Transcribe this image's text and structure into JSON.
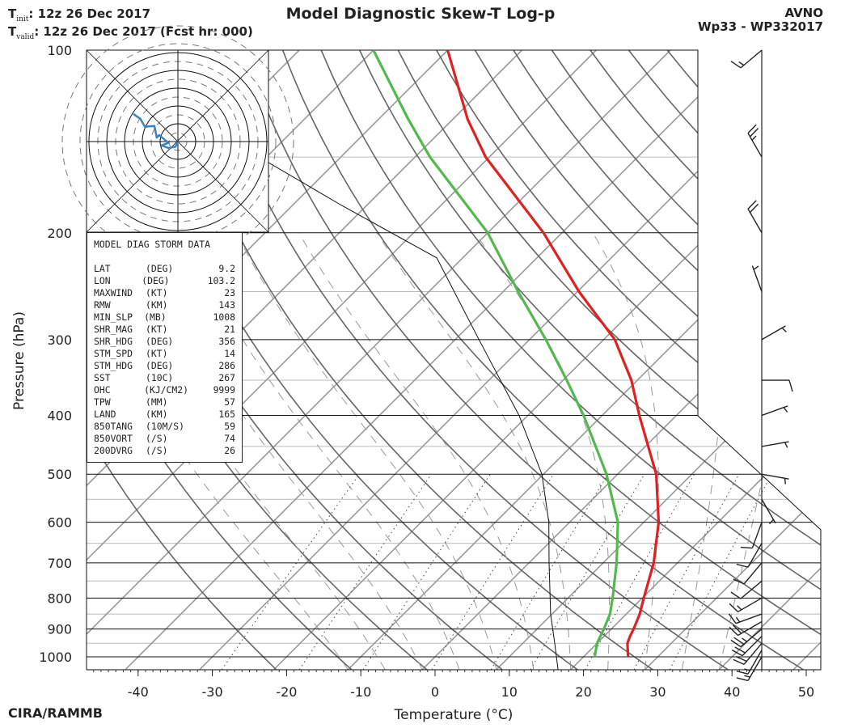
{
  "header": {
    "tinit_label": "init",
    "tinit_value": ":  12z 26 Dec 2017",
    "tvalid_label": "valid",
    "tvalid_value": ": 12z 26 Dec 2017 (Fcst hr: 000)",
    "title": "Model Diagnostic Skew-T Log-p",
    "model": "AVNO",
    "storm_id": "Wp33 - WP332017",
    "credit": "CIRA/RAMMB"
  },
  "storm_data": {
    "title": "MODEL DIAG STORM DATA",
    "rows": [
      {
        "key": "LAT",
        "unit": "(DEG)",
        "value": "9.2"
      },
      {
        "key": "LON",
        "unit": "(DEG)",
        "value": "103.2"
      },
      {
        "key": "MAXWIND",
        "unit": "(KT)",
        "value": "23"
      },
      {
        "key": "RMW",
        "unit": "(KM)",
        "value": "143"
      },
      {
        "key": "MIN_SLP",
        "unit": "(MB)",
        "value": "1008"
      },
      {
        "key": "SHR_MAG",
        "unit": "(KT)",
        "value": "21"
      },
      {
        "key": "SHR_HDG",
        "unit": "(DEG)",
        "value": "356"
      },
      {
        "key": "STM_SPD",
        "unit": "(KT)",
        "value": "14"
      },
      {
        "key": "STM_HDG",
        "unit": "(DEG)",
        "value": "286"
      },
      {
        "key": "SST",
        "unit": "(10C)",
        "value": "267"
      },
      {
        "key": "OHC",
        "unit": "(KJ/CM2)",
        "value": "9999"
      },
      {
        "key": "TPW",
        "unit": "(MM)",
        "value": "57"
      },
      {
        "key": "LAND",
        "unit": "(KM)",
        "value": "165"
      },
      {
        "key": "850TANG",
        "unit": "(10M/S)",
        "value": "59"
      },
      {
        "key": "850VORT",
        "unit": "(/S)",
        "value": "74"
      },
      {
        "key": "200DVRG",
        "unit": "(/S)",
        "value": "26"
      }
    ]
  },
  "chart_data": {
    "type": "line",
    "title": "Model Diagnostic Skew-T Log-p",
    "xlabel": "Temperature (°C)",
    "ylabel": "Pressure (hPa)",
    "x_ticks": [
      -40,
      -30,
      -20,
      -10,
      0,
      10,
      20,
      30,
      40,
      50
    ],
    "y_ticks": [
      100,
      200,
      300,
      400,
      500,
      600,
      700,
      800,
      900,
      1000
    ],
    "xlim": [
      -47,
      52
    ],
    "ylim": [
      1050,
      100
    ],
    "y_scale": "log",
    "series": [
      {
        "color": "#dd2222",
        "pressure": [
          1000,
          950,
          925,
          900,
          850,
          800,
          700,
          600,
          500,
          400,
          350,
          300,
          250,
          200,
          150,
          130,
          100
        ],
        "temperature": [
          26.0,
          24.1,
          23.5,
          23.0,
          21.8,
          20.2,
          16.8,
          12.0,
          5.2,
          -5.0,
          -10.8,
          -18.5,
          -29.8,
          -42.5,
          -60.5,
          -68.0,
          -80.0
        ]
      },
      {
        "color": "#55b84f",
        "pressure": [
          1000,
          950,
          925,
          900,
          850,
          800,
          700,
          600,
          500,
          400,
          350,
          300,
          250,
          200,
          150,
          130,
          100
        ],
        "temperature": [
          21.5,
          20.0,
          19.5,
          19.0,
          17.8,
          16.0,
          11.8,
          6.5,
          -1.5,
          -12.5,
          -19.5,
          -27.8,
          -38.0,
          -50.0,
          -68.0,
          -76.0,
          -90.0
        ]
      }
    ],
    "hodograph_color": "#3b83c0",
    "hodograph_points": [
      [
        0,
        0
      ],
      [
        4,
        1
      ],
      [
        5,
        4
      ],
      [
        3,
        7
      ],
      [
        1,
        4
      ],
      [
        -2,
        6
      ],
      [
        -5,
        8
      ],
      [
        -3,
        9
      ],
      [
        -12,
        10
      ],
      [
        -10,
        13
      ],
      [
        -8,
        14
      ],
      [
        -11,
        16
      ],
      [
        -10,
        19
      ]
    ],
    "barb_color": "#222222",
    "wind_barbs": [
      {
        "pressure": 1000,
        "dir": 210,
        "speed": 15
      },
      {
        "pressure": 975,
        "dir": 210,
        "speed": 15
      },
      {
        "pressure": 950,
        "dir": 220,
        "speed": 20
      },
      {
        "pressure": 925,
        "dir": 225,
        "speed": 20
      },
      {
        "pressure": 900,
        "dir": 230,
        "speed": 25
      },
      {
        "pressure": 875,
        "dir": 240,
        "speed": 20
      },
      {
        "pressure": 850,
        "dir": 250,
        "speed": 15
      },
      {
        "pressure": 800,
        "dir": 240,
        "speed": 15
      },
      {
        "pressure": 750,
        "dir": 230,
        "speed": 10
      },
      {
        "pressure": 700,
        "dir": 220,
        "speed": 10
      },
      {
        "pressure": 650,
        "dir": 210,
        "speed": 10
      },
      {
        "pressure": 600,
        "dir": 200,
        "speed": 10
      },
      {
        "pressure": 550,
        "dir": 150,
        "speed": 5
      },
      {
        "pressure": 500,
        "dir": 100,
        "speed": 5
      },
      {
        "pressure": 450,
        "dir": 80,
        "speed": 5
      },
      {
        "pressure": 400,
        "dir": 70,
        "speed": 5
      },
      {
        "pressure": 350,
        "dir": 90,
        "speed": 10
      },
      {
        "pressure": 300,
        "dir": 60,
        "speed": 5
      },
      {
        "pressure": 250,
        "dir": 340,
        "speed": 5
      },
      {
        "pressure": 200,
        "dir": 330,
        "speed": 20
      },
      {
        "pressure": 150,
        "dir": 330,
        "speed": 25
      },
      {
        "pressure": 100,
        "dir": 230,
        "speed": 15
      }
    ]
  }
}
